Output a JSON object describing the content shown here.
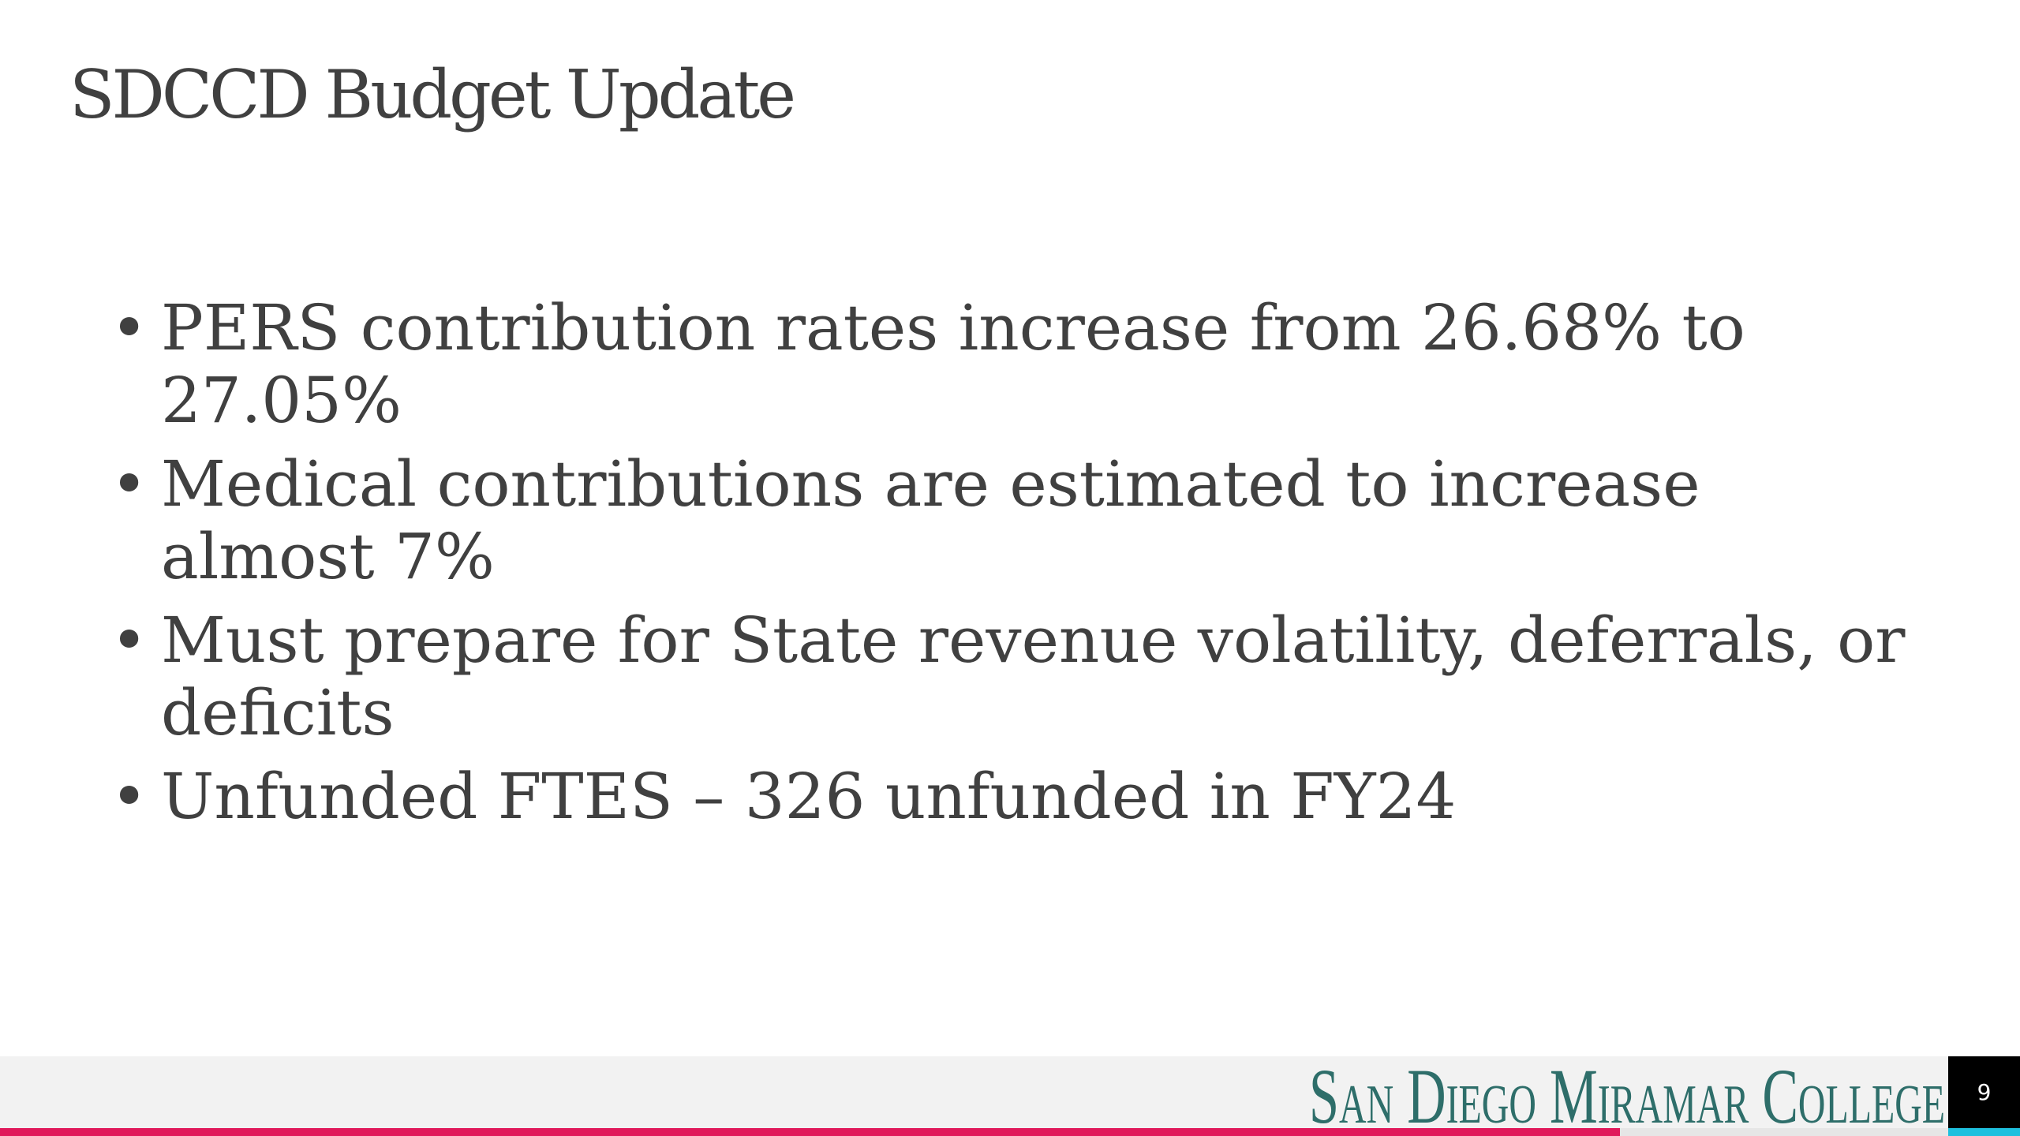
{
  "slide": {
    "title": "SDCCD Budget Update",
    "bullets": [
      "PERS contribution rates increase from 26.68% to 27.05%",
      "Medical contributions are estimated to increase almost 7%",
      "Must prepare for State revenue volatility, deferrals, or deficits",
      "Unfunded FTES – 326 unfunded in FY24"
    ],
    "footer": {
      "logo": "San Diego Miramar College",
      "page_number": "9"
    }
  }
}
